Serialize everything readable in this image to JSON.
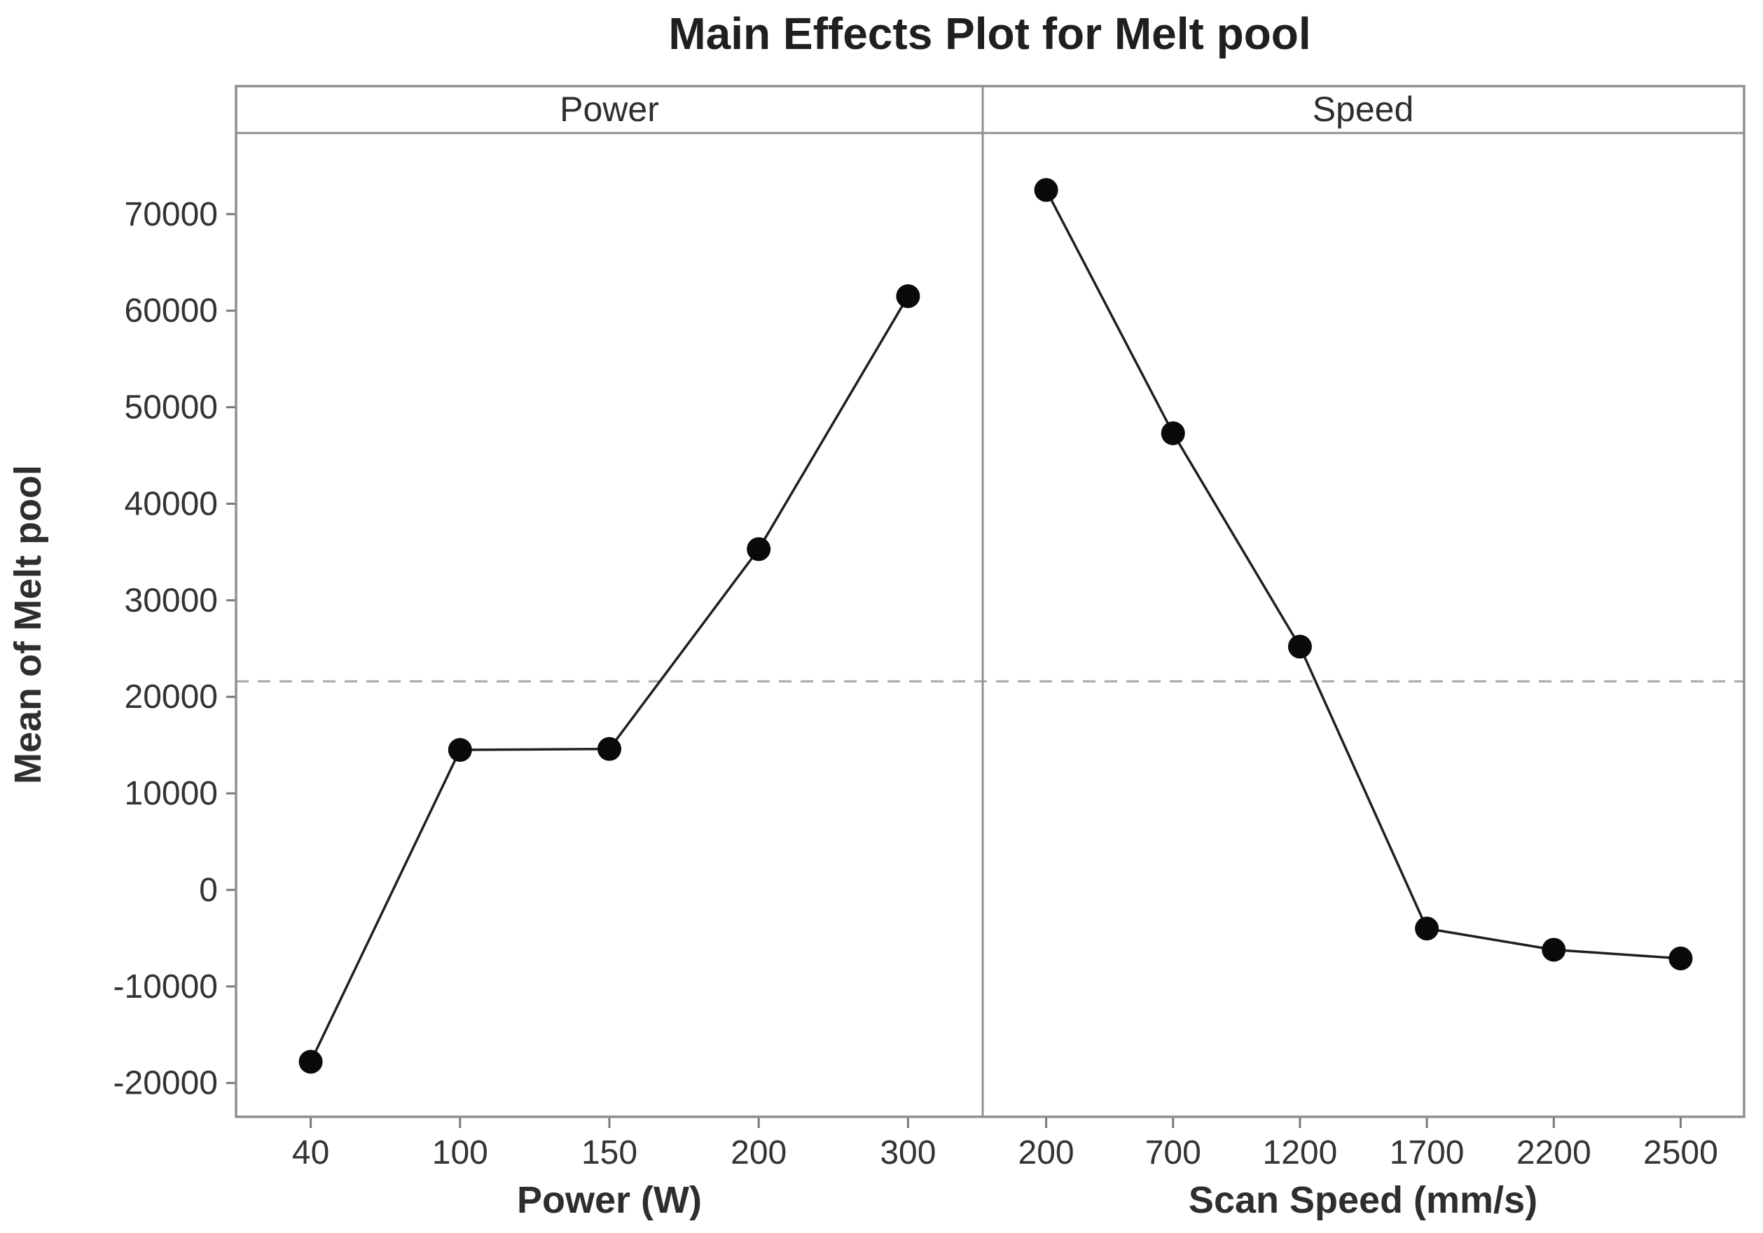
{
  "figure": {
    "title": "Main Effects Plot for Melt pool"
  },
  "chart_data": {
    "type": "line",
    "title": "Main Effects Plot for Melt pool",
    "ylabel": "Mean of Melt pool",
    "ylim": [
      -23500,
      78400
    ],
    "y_ticks": [
      -20000,
      -10000,
      0,
      10000,
      20000,
      30000,
      40000,
      50000,
      60000,
      70000
    ],
    "grid": false,
    "legend": "none",
    "overall_mean": 21600,
    "mean_line_style": "dashed",
    "marker": "filled-circle",
    "panels": [
      {
        "header": "Power",
        "xlabel": "Power (W)",
        "categories": [
          "40",
          "100",
          "150",
          "200",
          "300"
        ],
        "values": [
          -17800,
          14500,
          14600,
          35300,
          61500
        ]
      },
      {
        "header": "Speed",
        "xlabel": "Scan Speed (mm/s)",
        "categories": [
          "200",
          "700",
          "1200",
          "1700",
          "2200",
          "2500"
        ],
        "values": [
          72500,
          47300,
          25200,
          -4000,
          -6200,
          -7100
        ]
      }
    ]
  },
  "colors": {
    "series_line": "#1f1f1f",
    "marker": "#0a0a0a",
    "frame": "#8f8f8f",
    "tick": "#777777",
    "mean_line": "#a8a8a8",
    "text": "#2e2e2e",
    "background": "#ffffff"
  }
}
